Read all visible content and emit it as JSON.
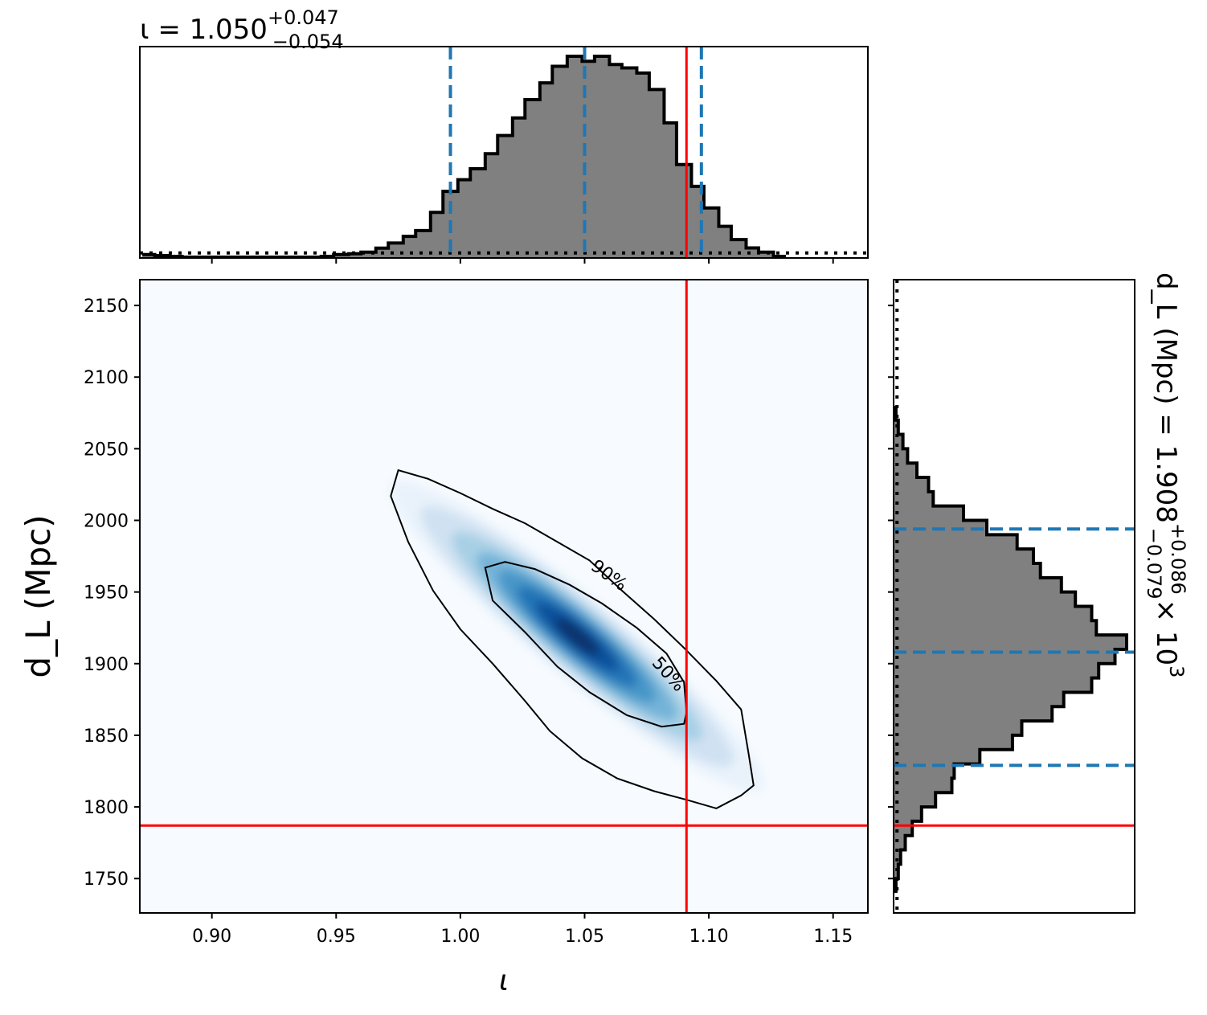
{
  "chart_data": [
    {
      "type": "area",
      "panel": "top-marginal-histogram",
      "title": {
        "main": "ι = 1.050",
        "sup": "+0.047",
        "sub": "−0.054"
      },
      "xlim": [
        0.871,
        1.164
      ],
      "xticks": [
        0.9,
        0.95,
        1.0,
        1.05,
        1.1,
        1.15
      ],
      "bin_edges": [
        0.872,
        0.877,
        0.883,
        0.888,
        0.894,
        0.899,
        0.905,
        0.91,
        0.916,
        0.921,
        0.927,
        0.932,
        0.938,
        0.944,
        0.949,
        0.955,
        0.96,
        0.966,
        0.971,
        0.977,
        0.982,
        0.988,
        0.993,
        0.999,
        1.004,
        1.01,
        1.015,
        1.021,
        1.026,
        1.032,
        1.037,
        1.043,
        1.049,
        1.054,
        1.06,
        1.065,
        1.071,
        1.076,
        1.082,
        1.087,
        1.093,
        1.098,
        1.104,
        1.109,
        1.115,
        1.12,
        1.126,
        1.131
      ],
      "counts": [
        0.017,
        0.012,
        0.008,
        0.004,
        0.004,
        0.004,
        0.004,
        0.004,
        0.004,
        0.004,
        0.004,
        0.004,
        0.004,
        0.008,
        0.017,
        0.021,
        0.029,
        0.049,
        0.074,
        0.107,
        0.136,
        0.226,
        0.33,
        0.388,
        0.442,
        0.517,
        0.607,
        0.694,
        0.785,
        0.868,
        0.95,
        1.0,
        0.975,
        1.0,
        0.959,
        0.942,
        0.917,
        0.835,
        0.67,
        0.463,
        0.355,
        0.248,
        0.157,
        0.091,
        0.05,
        0.029,
        0.008
      ],
      "quantile_lines": [
        0.996,
        1.05,
        1.097
      ],
      "truth": 1.091,
      "prior_level": 0.025
    },
    {
      "type": "heatmap",
      "panel": "joint-density",
      "xlabel": "ι",
      "ylabel": "d_L (Mpc)",
      "xlim": [
        0.871,
        1.164
      ],
      "ylim": [
        1726,
        2168
      ],
      "xticks": [
        0.9,
        0.95,
        1.0,
        1.05,
        1.1,
        1.15
      ],
      "yticks": [
        1750,
        1800,
        1850,
        1900,
        1950,
        2000,
        2050,
        2100,
        2150
      ],
      "density_center": {
        "x": 1.047,
        "y": 1919
      },
      "contours": [
        {
          "label": "90%",
          "points": [
            [
              0.975,
              2035
            ],
            [
              0.987,
              2029
            ],
            [
              1.0,
              2019
            ],
            [
              1.013,
              2008
            ],
            [
              1.026,
              1998
            ],
            [
              1.039,
              1985
            ],
            [
              1.052,
              1972
            ],
            [
              1.065,
              1951
            ],
            [
              1.078,
              1931
            ],
            [
              1.09,
              1911
            ],
            [
              1.103,
              1888
            ],
            [
              1.113,
              1868
            ],
            [
              1.116,
              1837
            ],
            [
              1.118,
              1815
            ],
            [
              1.113,
              1808
            ],
            [
              1.103,
              1799
            ],
            [
              1.091,
              1805
            ],
            [
              1.078,
              1811
            ],
            [
              1.063,
              1820
            ],
            [
              1.049,
              1834
            ],
            [
              1.036,
              1853
            ],
            [
              1.026,
              1874
            ],
            [
              1.013,
              1900
            ],
            [
              1.0,
              1924
            ],
            [
              0.989,
              1951
            ],
            [
              0.979,
              1985
            ],
            [
              0.972,
              2017
            ],
            [
              0.975,
              2035
            ]
          ]
        },
        {
          "label": "50%",
          "points": [
            [
              1.01,
              1967
            ],
            [
              1.018,
              1971
            ],
            [
              1.03,
              1966
            ],
            [
              1.044,
              1955
            ],
            [
              1.057,
              1942
            ],
            [
              1.071,
              1925
            ],
            [
              1.083,
              1907
            ],
            [
              1.09,
              1887
            ],
            [
              1.091,
              1866
            ],
            [
              1.09,
              1858
            ],
            [
              1.081,
              1856
            ],
            [
              1.067,
              1864
            ],
            [
              1.052,
              1880
            ],
            [
              1.039,
              1898
            ],
            [
              1.026,
              1922
            ],
            [
              1.013,
              1944
            ],
            [
              1.01,
              1967
            ]
          ]
        }
      ],
      "truth": {
        "x": 1.091,
        "y": 1787
      }
    },
    {
      "type": "area",
      "panel": "right-marginal-histogram",
      "title": {
        "main": "d_L (Mpc) = 1.908",
        "sup": "+0.086",
        "sub": "−0.079",
        "factor": "× 10",
        "exp": "3"
      },
      "ylim": [
        1726,
        2168
      ],
      "yticks": [
        1750,
        1800,
        1850,
        1900,
        1950,
        2000,
        2050,
        2100,
        2150
      ],
      "bin_edges": [
        1740,
        1750,
        1760,
        1770,
        1780,
        1790,
        1800,
        1810,
        1820,
        1830,
        1840,
        1850,
        1860,
        1870,
        1880,
        1890,
        1900,
        1910,
        1920,
        1930,
        1940,
        1950,
        1960,
        1970,
        1980,
        1990,
        2000,
        2010,
        2020,
        2030,
        2040,
        2050,
        2060,
        2070,
        2080
      ],
      "counts": [
        0.01,
        0.02,
        0.03,
        0.05,
        0.08,
        0.12,
        0.18,
        0.25,
        0.26,
        0.37,
        0.51,
        0.55,
        0.68,
        0.73,
        0.85,
        0.88,
        0.95,
        1.0,
        0.87,
        0.85,
        0.78,
        0.72,
        0.63,
        0.6,
        0.53,
        0.4,
        0.3,
        0.17,
        0.15,
        0.1,
        0.06,
        0.04,
        0.02,
        0.01
      ],
      "quantile_lines": [
        1829,
        1908,
        1994
      ],
      "truth": 1787,
      "prior_level": 0.025
    }
  ],
  "colors": {
    "quantile": "#1f77b4",
    "truth": "#ff0000",
    "hist_fill": "#808080",
    "outline": "#000000"
  }
}
